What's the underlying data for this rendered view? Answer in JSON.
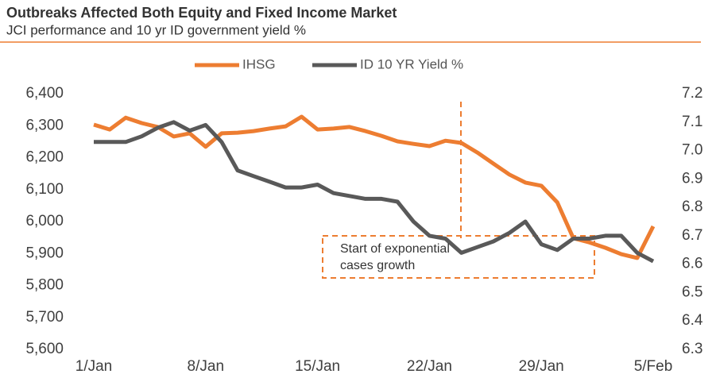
{
  "chart_data": {
    "type": "line",
    "title": "Outbreaks Affected Both Equity and Fixed Income Market",
    "subtitle": "JCI performance and 10 yr ID government yield %",
    "categories": [
      "1/Jan",
      null,
      null,
      null,
      null,
      null,
      null,
      "8/Jan",
      null,
      null,
      null,
      null,
      null,
      null,
      "15/Jan",
      null,
      null,
      null,
      null,
      null,
      null,
      "22/Jan",
      null,
      null,
      null,
      null,
      null,
      null,
      "29/Jan",
      null,
      null,
      null,
      null,
      null,
      null,
      "5/Feb"
    ],
    "series": [
      {
        "name": "IHSG",
        "color": "#ED7D31",
        "axis": "y",
        "values": [
          6303,
          6288,
          6325,
          6308,
          6296,
          6266,
          6276,
          6234,
          6276,
          6278,
          6283,
          6291,
          6298,
          6328,
          6288,
          6291,
          6296,
          6283,
          6268,
          6251,
          6243,
          6236,
          6253,
          6246,
          6216,
          6181,
          6147,
          6122,
          6112,
          6060,
          5948,
          5935,
          5918,
          5898,
          5886,
          5985
        ]
      },
      {
        "name": "ID 10 YR Yield %",
        "color": "#595959",
        "axis": "y2",
        "values": [
          7.03,
          7.03,
          7.03,
          7.05,
          7.08,
          7.1,
          7.07,
          7.09,
          7.03,
          6.93,
          6.91,
          6.89,
          6.87,
          6.87,
          6.88,
          6.85,
          6.84,
          6.83,
          6.83,
          6.82,
          6.75,
          6.7,
          6.69,
          6.64,
          6.66,
          6.68,
          6.71,
          6.75,
          6.67,
          6.65,
          6.69,
          6.69,
          6.7,
          6.7,
          6.64,
          6.61
        ]
      }
    ],
    "ylim": [
      5600,
      6400
    ],
    "yticks": [
      {
        "value": 5600,
        "label": "5,600"
      },
      {
        "value": 5700,
        "label": "5,700"
      },
      {
        "value": 5800,
        "label": "5,800"
      },
      {
        "value": 5900,
        "label": "5,900"
      },
      {
        "value": 6000,
        "label": "6,000"
      },
      {
        "value": 6100,
        "label": "6,100"
      },
      {
        "value": 6200,
        "label": "6,200"
      },
      {
        "value": 6300,
        "label": "6,300"
      },
      {
        "value": 6400,
        "label": "6,400"
      }
    ],
    "y2lim": [
      6.3,
      7.2
    ],
    "y2ticks": [
      6.3,
      6.4,
      6.5,
      6.6,
      6.7,
      6.8,
      6.9,
      {
        "value": 7,
        "label": "7.0"
      },
      7.1,
      7.2
    ],
    "annotation_lines": [
      "Start of exponential",
      "cases growth"
    ],
    "grid": false,
    "legend": "top"
  }
}
